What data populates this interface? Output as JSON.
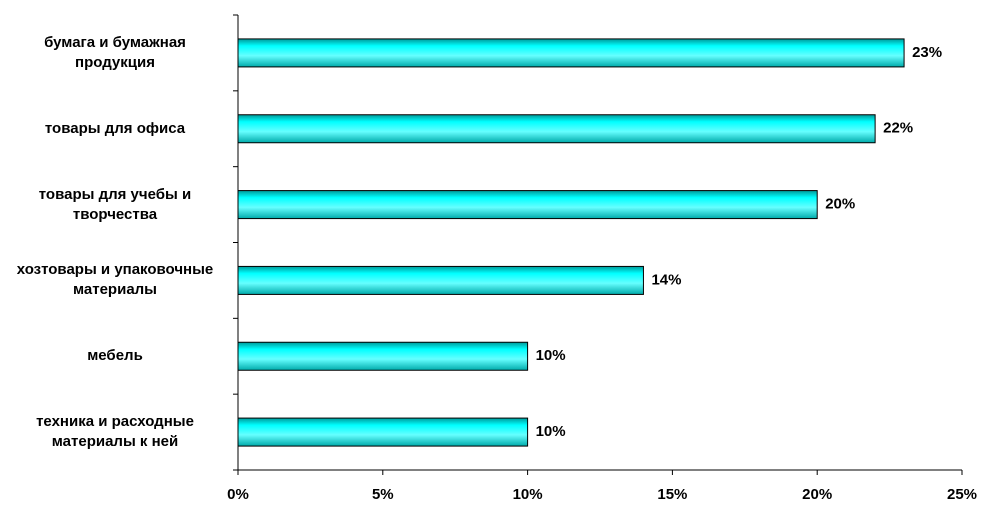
{
  "chart_data": {
    "type": "bar",
    "orientation": "horizontal",
    "categories": [
      "бумага и бумажная\nпродукция",
      "товары для офиса",
      "товары для учебы и\nтворчества",
      "хозтовары и упаковочные\nматериалы",
      "мебель",
      "техника и расходные\nматериалы к ней"
    ],
    "values": [
      23,
      22,
      20,
      14,
      10,
      10
    ],
    "value_labels": [
      "23%",
      "22%",
      "20%",
      "14%",
      "10%",
      "10%"
    ],
    "color": "#00ffff",
    "xlim": [
      0,
      25
    ],
    "xticks": [
      {
        "value": 0,
        "label": "0%"
      },
      {
        "value": 5,
        "label": "5%"
      },
      {
        "value": 10,
        "label": "10%"
      },
      {
        "value": 15,
        "label": "15%"
      },
      {
        "value": 20,
        "label": "20%"
      },
      {
        "value": 25,
        "label": "25%"
      }
    ],
    "grid": false
  }
}
